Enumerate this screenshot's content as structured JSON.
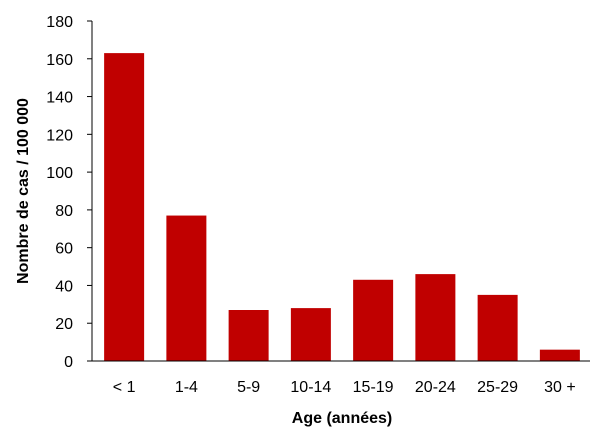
{
  "chart_data": {
    "type": "bar",
    "title": "",
    "xlabel": "Age (années)",
    "ylabel": "Nombre de cas / 100 000",
    "categories": [
      "< 1",
      "1-4",
      "5-9",
      "10-14",
      "15-19",
      "20-24",
      "25-29",
      "30 +"
    ],
    "values": [
      163,
      77,
      27,
      28,
      43,
      46,
      35,
      6
    ],
    "ylim": [
      0,
      180
    ],
    "yticks": [
      0,
      20,
      40,
      60,
      80,
      100,
      120,
      140,
      160,
      180
    ],
    "grid": false,
    "legend": "none",
    "bar_color": "#c00000"
  }
}
